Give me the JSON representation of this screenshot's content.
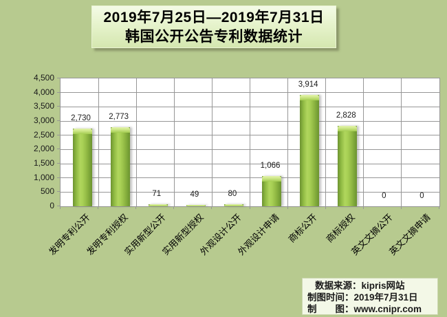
{
  "title": {
    "line1": "2019年7月25日—2019年7月31日",
    "line2": "韩国公开公告专利数据统计"
  },
  "chart_data": {
    "type": "bar",
    "title": "2019年7月25日—2019年7月31日 韩国公开公告专利数据统计",
    "categories": [
      "发明专利公开",
      "发明专利授权",
      "实用新型公开",
      "实用新型授权",
      "外观设计公开",
      "外观设计申请",
      "商标公开",
      "商标授权",
      "英文文摘公开",
      "英文文摘申请"
    ],
    "values": [
      2730,
      2773,
      71,
      49,
      80,
      1066,
      3914,
      2828,
      0,
      0
    ],
    "value_labels": [
      "2,730",
      "2,773",
      "71",
      "49",
      "80",
      "1,066",
      "3,914",
      "2,828",
      "0",
      "0"
    ],
    "xlabel": "",
    "ylabel": "",
    "ylim": [
      0,
      4500
    ],
    "ytick_step": 500,
    "grid": true,
    "legend": "none",
    "bar_color": "#94be45",
    "bar_highlight": "#cde685",
    "background_color": "#b7ca8f",
    "plot_background": "#ffffff",
    "gridline_color": "#969696"
  },
  "footer": {
    "line1": "数据来源：kipris网站",
    "line2": "制图时间：2019年7月31日",
    "line3": "制　　图：www.cnipr.com"
  }
}
